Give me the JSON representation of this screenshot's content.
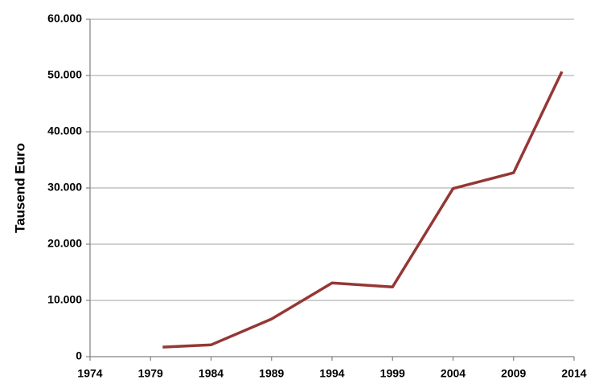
{
  "chart_data": {
    "type": "line",
    "y_label": "Tausend Euro",
    "x": [
      1980,
      1984,
      1989,
      1994,
      1999,
      2004,
      2009,
      2013
    ],
    "values": [
      1700,
      2100,
      6700,
      13100,
      12400,
      29900,
      32700,
      50700
    ],
    "color": "#953735",
    "xlim": [
      1974,
      2014
    ],
    "xticks": [
      1974,
      1979,
      1984,
      1989,
      1994,
      1999,
      2004,
      2009,
      2014
    ],
    "ylim": [
      0,
      60000
    ],
    "yticks": [
      0,
      {
        "value": 10000,
        "label": "10.000"
      },
      {
        "value": 20000,
        "label": "20.000"
      },
      {
        "value": 30000,
        "label": "30.000"
      },
      {
        "value": 40000,
        "label": "40.000"
      },
      {
        "value": 50000,
        "label": "50.000"
      },
      {
        "value": 60000,
        "label": "60.000"
      }
    ],
    "grid": true
  }
}
